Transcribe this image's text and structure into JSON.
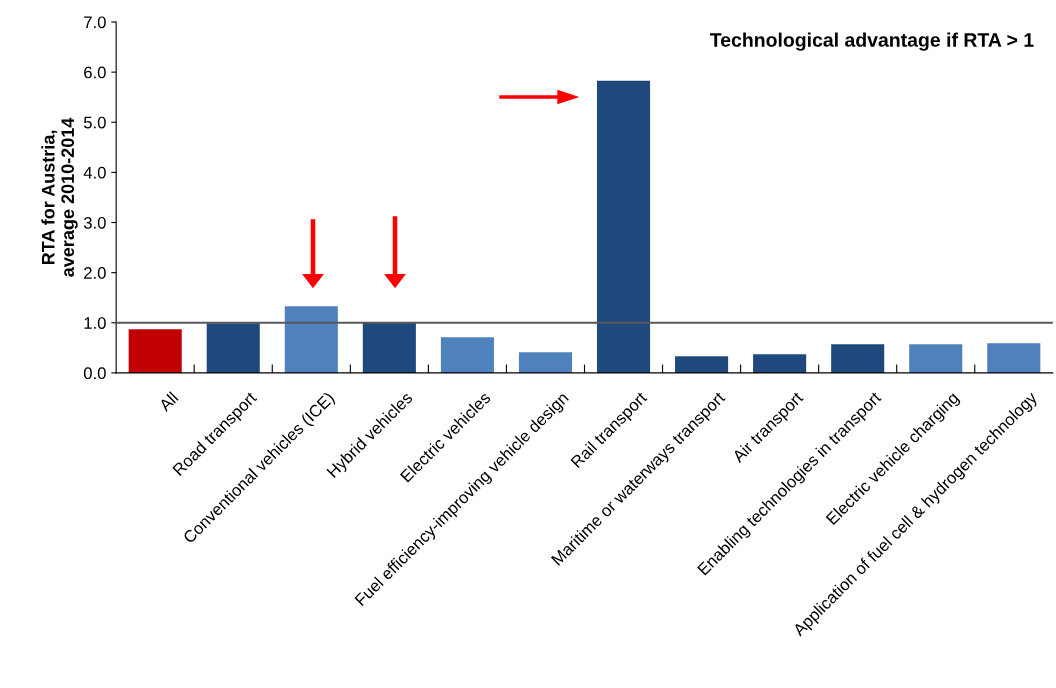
{
  "chart_data": {
    "type": "bar",
    "ylabel": "RTA for Austria,\naverage 2010-2014",
    "categories": [
      "All",
      "Road transport",
      "Conventional vehicles (ICE)",
      "Hybrid vehicles",
      "Electric vehicles",
      "Fuel efficiency-improving vehicle design",
      "Rail transport",
      "Maritime or waterways transport",
      "Air transport",
      "Enabling technologies in transport",
      "Electric vehicle charging",
      "Application of fuel cell & hydrogen technology"
    ],
    "values": [
      0.87,
      0.99,
      1.33,
      1.0,
      0.71,
      0.41,
      5.83,
      0.33,
      0.37,
      0.57,
      0.57,
      0.59
    ],
    "colors": [
      "#c00000",
      "#1f497d",
      "#4f81bd",
      "#1f497d",
      "#4f81bd",
      "#4f81bd",
      "#1f497d",
      "#1f497d",
      "#1f497d",
      "#1f497d",
      "#4f81bd",
      "#4f81bd"
    ],
    "ylim": [
      0,
      7
    ],
    "yticks": [
      {
        "value": 0,
        "label": "0.0"
      },
      {
        "value": 1,
        "label": "1.0"
      },
      {
        "value": 2,
        "label": "2.0"
      },
      {
        "value": 3,
        "label": "3.0"
      },
      {
        "value": 4,
        "label": "4.0"
      },
      {
        "value": 5,
        "label": "5.0"
      },
      {
        "value": 6,
        "label": "6.0"
      },
      {
        "value": 7,
        "label": "7.0"
      }
    ],
    "ref_lines": [
      {
        "axis": "y",
        "value": 1,
        "color": "#595959"
      }
    ],
    "annotations": [
      "Technological advantage if RTA > 1"
    ],
    "grid": false
  }
}
